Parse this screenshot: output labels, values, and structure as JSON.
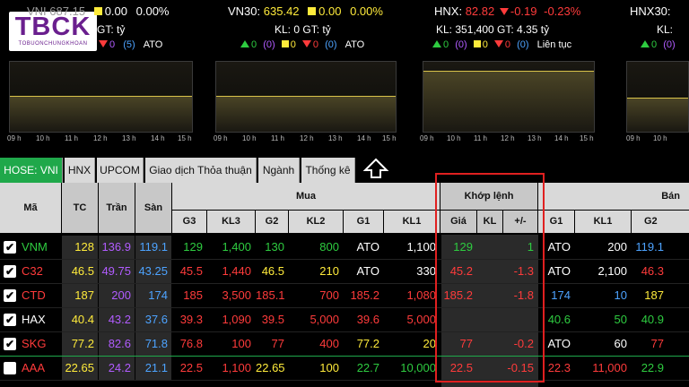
{
  "logo": {
    "title": "TBCK",
    "subtitle": "TOBUONCHUNGKHOAN"
  },
  "indices": [
    {
      "name": "VNI",
      "value": "687.15",
      "change": "0.00",
      "pct": "0.00%",
      "kl_gt": "GT: tỷ",
      "up": "0",
      "up_count": "(0)",
      "down": "0",
      "count5": "(5)",
      "session": "ATO"
    },
    {
      "name": "VN30:",
      "value": "635.42",
      "change": "0.00",
      "pct": "0.00%",
      "kl_gt": "KL: 0 GT: tỷ",
      "up": "0",
      "up_count": "(0)",
      "down": "0",
      "count5": "(0)",
      "session": "ATO"
    },
    {
      "name": "HNX:",
      "value": "82.82",
      "change": "-0.19",
      "pct": "-0.23%",
      "kl_gt": "KL: 351,400 GT: 4.35 tỷ",
      "up": "0",
      "up_count": "(0)",
      "down": "0",
      "count5": "(0)",
      "session": "Liên tục"
    },
    {
      "name": "HNX30:",
      "value": "",
      "change": "",
      "pct": "",
      "kl_gt": "KL:",
      "up": "",
      "up_count": "",
      "down": "",
      "count5": "",
      "session": ""
    }
  ],
  "time_ticks": [
    "09 h",
    "10 h",
    "11 h",
    "12 h",
    "13 h",
    "14 h",
    "15 h"
  ],
  "tabs": [
    "HOSE: VNI",
    "HNX",
    "UPCOM",
    "Giao dịch Thỏa thuận",
    "Ngành",
    "Thống kê"
  ],
  "headers": {
    "ma": "Mã",
    "tc": "TC",
    "tran": "Trần",
    "san": "Sàn",
    "mua": "Mua",
    "khop": "Khớp lệnh",
    "ban": "Bán",
    "g3": "G3",
    "kl3": "KL3",
    "g2": "G2",
    "kl2": "KL2",
    "g1": "G1",
    "kl1": "KL1",
    "gia": "Giá",
    "kl": "KL",
    "pm": "+/-",
    "bg1": "G1",
    "bkl1": "KL1",
    "bg2": "G2"
  },
  "colors": {
    "up": "#2ecc40",
    "down": "#ff3b3b",
    "ref": "#ffeb3b",
    "ceil": "#b15cff",
    "floor": "#4da3ff",
    "neutral": "#ffffff"
  },
  "rows": [
    {
      "sym": "VNM",
      "tc": "128",
      "tran": "136.9",
      "san": "119.1",
      "g3": "129",
      "kl3": "1,400",
      "g2": "130",
      "kl2": "800",
      "g1": "ATO",
      "kl1": "1,100",
      "gia": "129",
      "kl": "",
      "pm": "1",
      "bg1": "ATO",
      "bkl1": "200",
      "bg2": "119.1",
      "checked": true,
      "symc": "up",
      "g3c": "up",
      "g2c": "up",
      "g1c": "neutral",
      "giac": "up",
      "bg1c": "neutral",
      "bg2c": "floor"
    },
    {
      "sym": "C32",
      "tc": "46.5",
      "tran": "49.75",
      "san": "43.25",
      "g3": "45.5",
      "kl3": "1,440",
      "g2": "46.5",
      "kl2": "210",
      "g1": "ATO",
      "kl1": "330",
      "gia": "45.2",
      "kl": "",
      "pm": "-1.3",
      "bg1": "ATO",
      "bkl1": "2,100",
      "bg2": "46.3",
      "checked": true,
      "symc": "down",
      "g3c": "down",
      "g2c": "ref",
      "g1c": "neutral",
      "giac": "down",
      "bg1c": "neutral",
      "bg2c": "down"
    },
    {
      "sym": "CTD",
      "tc": "187",
      "tran": "200",
      "san": "174",
      "g3": "185",
      "kl3": "3,500",
      "g2": "185.1",
      "kl2": "700",
      "g1": "185.2",
      "kl1": "1,080",
      "gia": "185.2",
      "kl": "",
      "pm": "-1.8",
      "bg1": "174",
      "bkl1": "10",
      "bg2": "187",
      "checked": true,
      "symc": "down",
      "g3c": "down",
      "g2c": "down",
      "g1c": "down",
      "giac": "down",
      "bg1c": "floor",
      "bg2c": "ref"
    },
    {
      "sym": "HAX",
      "tc": "40.4",
      "tran": "43.2",
      "san": "37.6",
      "g3": "39.3",
      "kl3": "1,090",
      "g2": "39.5",
      "kl2": "5,000",
      "g1": "39.6",
      "kl1": "5,000",
      "gia": "",
      "kl": "",
      "pm": "",
      "bg1": "40.6",
      "bkl1": "50",
      "bg2": "40.9",
      "checked": true,
      "symc": "neutral",
      "g3c": "down",
      "g2c": "down",
      "g1c": "down",
      "giac": "neutral",
      "bg1c": "up",
      "bg2c": "up"
    },
    {
      "sym": "SKG",
      "tc": "77.2",
      "tran": "82.6",
      "san": "71.8",
      "g3": "76.8",
      "kl3": "100",
      "g2": "77",
      "kl2": "400",
      "g1": "77.2",
      "kl1": "20",
      "gia": "77",
      "kl": "",
      "pm": "-0.2",
      "bg1": "ATO",
      "bkl1": "60",
      "bg2": "77",
      "checked": true,
      "symc": "down",
      "g3c": "down",
      "g2c": "down",
      "g1c": "ref",
      "giac": "down",
      "bg1c": "neutral",
      "bg2c": "down"
    },
    {
      "sym": "AAA",
      "tc": "22.65",
      "tran": "24.2",
      "san": "21.1",
      "g3": "22.5",
      "kl3": "1,100",
      "g2": "22.65",
      "kl2": "100",
      "g1": "22.7",
      "kl1": "10,000",
      "gia": "22.5",
      "kl": "",
      "pm": "-0.15",
      "bg1": "22.3",
      "bkl1": "11,000",
      "bg2": "22.9",
      "checked": false,
      "symc": "down",
      "g3c": "down",
      "g2c": "ref",
      "g1c": "up",
      "giac": "down",
      "bg1c": "down",
      "bg2c": "up"
    }
  ]
}
